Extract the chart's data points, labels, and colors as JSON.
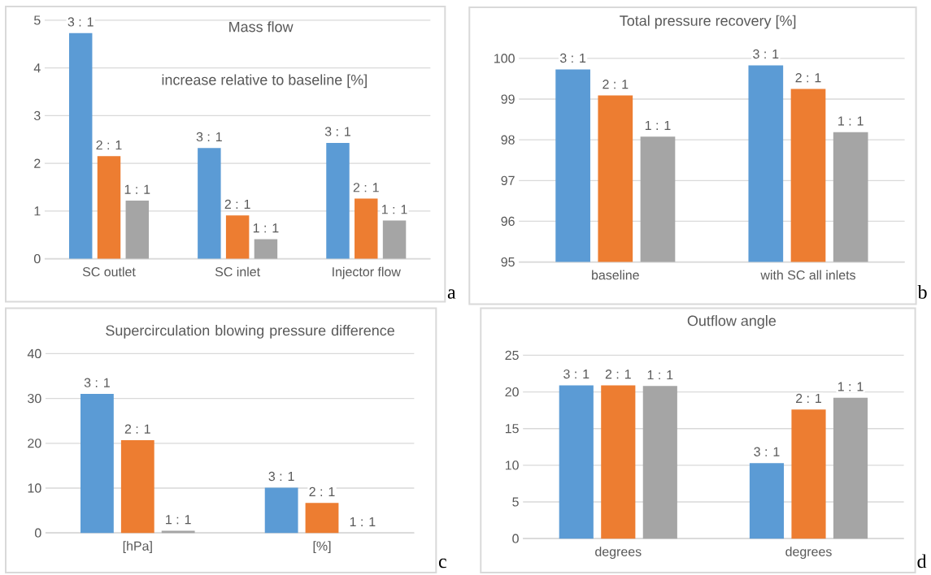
{
  "chart_data": [
    {
      "type": "bar",
      "title": "Mass flow",
      "subtitle": "increase relative to baseline [%]",
      "categories": [
        "SC outlet",
        "SC inlet",
        "Injector flow"
      ],
      "series": [
        {
          "name": "3 : 1",
          "color": "#5b9bd5",
          "values": [
            4.73,
            2.32,
            2.43
          ]
        },
        {
          "name": "2 : 1",
          "color": "#ed7d31",
          "values": [
            2.15,
            0.91,
            1.26
          ]
        },
        {
          "name": "1 : 1",
          "color": "#a5a5a5",
          "values": [
            1.22,
            0.41,
            0.8
          ]
        }
      ],
      "ylim": [
        0,
        5
      ],
      "yticks": [
        0,
        1,
        2,
        3,
        4,
        5
      ],
      "grid": "y",
      "annotations": [
        "a"
      ]
    },
    {
      "type": "bar",
      "title": "Total pressure recovery [%]",
      "categories": [
        "baseline",
        "with SC all inlets"
      ],
      "series": [
        {
          "name": "3 : 1",
          "color": "#5b9bd5",
          "values": [
            99.73,
            99.83
          ]
        },
        {
          "name": "2 : 1",
          "color": "#ed7d31",
          "values": [
            99.09,
            99.25
          ]
        },
        {
          "name": "1 : 1",
          "color": "#a5a5a5",
          "values": [
            98.08,
            98.19
          ]
        }
      ],
      "ylim": [
        95,
        100
      ],
      "yticks": [
        95,
        96,
        97,
        98,
        99,
        100
      ],
      "grid": "y",
      "annotations": [
        "b"
      ]
    },
    {
      "type": "bar",
      "title": "Supercirculation  blowing pressure difference",
      "categories": [
        "[hPa]",
        "[%]"
      ],
      "series": [
        {
          "name": "3 : 1",
          "color": "#5b9bd5",
          "values": [
            31.0,
            10.1
          ]
        },
        {
          "name": "2 : 1",
          "color": "#ed7d31",
          "values": [
            20.7,
            6.7
          ]
        },
        {
          "name": "1 : 1",
          "color": "#a5a5a5",
          "values": [
            0.5,
            0
          ]
        }
      ],
      "ylim": [
        0,
        40
      ],
      "yticks": [
        0,
        10,
        20,
        30,
        40
      ],
      "grid": "y",
      "annotations": [
        "c"
      ]
    },
    {
      "type": "bar",
      "title": "Outflow angle",
      "categories": [
        "degrees",
        "degrees"
      ],
      "series": [
        {
          "name": "3 : 1",
          "color": "#5b9bd5",
          "values": [
            20.9,
            10.3
          ]
        },
        {
          "name": "2 : 1",
          "color": "#ed7d31",
          "values": [
            20.9,
            17.6
          ]
        },
        {
          "name": "1 : 1",
          "color": "#a5a5a5",
          "values": [
            20.8,
            19.2
          ]
        }
      ],
      "ylim": [
        0,
        25
      ],
      "yticks": [
        0,
        5,
        10,
        15,
        20,
        25
      ],
      "grid": "y",
      "annotations": [
        "d"
      ]
    }
  ]
}
